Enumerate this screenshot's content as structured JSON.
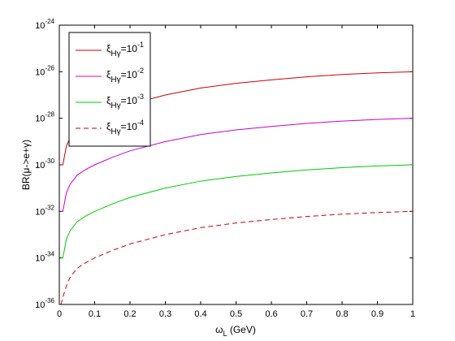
{
  "chart_data": {
    "type": "line",
    "title": "",
    "xlabel": "ω_L (GeV)",
    "ylabel": "BR(μ->e+γ)",
    "xlim": [
      0,
      1
    ],
    "ylim_log10": [
      -36,
      -24
    ],
    "y_scale": "log",
    "grid": false,
    "legend_position": "top-left",
    "x_ticks": [
      0,
      0.1,
      0.2,
      0.3,
      0.4,
      0.5,
      0.6,
      0.7,
      0.8,
      0.9,
      1
    ],
    "x_tick_labels": [
      "0",
      "0.1",
      "0.2",
      "0.3",
      "0.4",
      "0.5",
      "0.6",
      "0.7",
      "0.8",
      "0.9",
      "1"
    ],
    "y_tick_exponents": [
      -36,
      -34,
      -32,
      -30,
      -28,
      -26,
      -24
    ],
    "y_tick_labels": [
      {
        "base": "10",
        "exp": "-36"
      },
      {
        "base": "10",
        "exp": "-34"
      },
      {
        "base": "10",
        "exp": "-32"
      },
      {
        "base": "10",
        "exp": "-30"
      },
      {
        "base": "10",
        "exp": "-28"
      },
      {
        "base": "10",
        "exp": "-26"
      },
      {
        "base": "10",
        "exp": "-24"
      }
    ],
    "x": [
      0.005,
      0.01,
      0.02,
      0.03,
      0.05,
      0.075,
      0.1,
      0.15,
      0.2,
      0.3,
      0.4,
      0.5,
      0.6,
      0.7,
      0.8,
      0.9,
      1.0
    ],
    "series": [
      {
        "name": "ξ_Hγ=10^-1",
        "legend_symbol": "ξ",
        "legend_sub": "Hγ",
        "legend_rest": "=10",
        "legend_exp": "-1",
        "color": "#cc0000",
        "dash": "solid",
        "log10_values": [
          -30.0,
          -30.0,
          -29.2,
          -28.85,
          -28.45,
          -28.2,
          -28.0,
          -27.68,
          -27.4,
          -27.0,
          -26.7,
          -26.5,
          -26.35,
          -26.22,
          -26.12,
          -26.05,
          -26.0
        ]
      },
      {
        "name": "ξ_Hγ=10^-2",
        "legend_symbol": "ξ",
        "legend_sub": "Hγ",
        "legend_rest": "=10",
        "legend_exp": "-2",
        "color": "#cc00cc",
        "dash": "solid",
        "log10_values": [
          -32.0,
          -32.0,
          -31.2,
          -30.85,
          -30.45,
          -30.2,
          -30.0,
          -29.68,
          -29.4,
          -29.0,
          -28.7,
          -28.5,
          -28.35,
          -28.22,
          -28.12,
          -28.05,
          -28.0
        ]
      },
      {
        "name": "ξ_Hγ=10^-3",
        "legend_symbol": "ξ",
        "legend_sub": "Hγ",
        "legend_rest": "=10",
        "legend_exp": "-3",
        "color": "#00cc00",
        "dash": "solid",
        "log10_values": [
          -34.0,
          -34.0,
          -33.2,
          -32.85,
          -32.45,
          -32.2,
          -32.0,
          -31.68,
          -31.4,
          -31.0,
          -30.7,
          -30.5,
          -30.35,
          -30.22,
          -30.12,
          -30.05,
          -30.0
        ]
      },
      {
        "name": "ξ_Hγ=10^-4",
        "legend_symbol": "ξ",
        "legend_sub": "Hγ",
        "legend_rest": "=10",
        "legend_exp": "-4",
        "color": "#cc0000",
        "dash": "dashed",
        "log10_values": [
          -36.0,
          -35.7,
          -35.2,
          -34.85,
          -34.45,
          -34.2,
          -34.0,
          -33.68,
          -33.4,
          -33.0,
          -32.7,
          -32.5,
          -32.35,
          -32.22,
          -32.12,
          -32.05,
          -32.0
        ]
      }
    ]
  }
}
